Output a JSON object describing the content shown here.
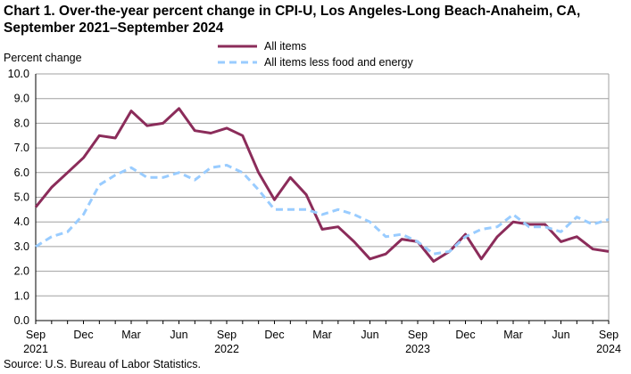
{
  "chart_data": {
    "type": "line",
    "title_line1": "Chart 1. Over-the-year percent change in CPI-U, Los Angeles-Long  Beach-Anaheim,  CA,",
    "title_line2": "September 2021–September 2024",
    "ylabel": "Percent change",
    "source": "Source: U.S. Bureau  of Labor Statistics.",
    "ylim": [
      0,
      10
    ],
    "yticks": [
      "0.0",
      "1.0",
      "2.0",
      "3.0",
      "4.0",
      "5.0",
      "6.0",
      "7.0",
      "8.0",
      "9.0",
      "10.0"
    ],
    "xticks": [
      {
        "i": 0,
        "m": "Sep",
        "y": "2021"
      },
      {
        "i": 3,
        "m": "Dec",
        "y": ""
      },
      {
        "i": 6,
        "m": "Mar",
        "y": ""
      },
      {
        "i": 9,
        "m": "Jun",
        "y": ""
      },
      {
        "i": 12,
        "m": "Sep",
        "y": "2022"
      },
      {
        "i": 15,
        "m": "Dec",
        "y": ""
      },
      {
        "i": 18,
        "m": "Mar",
        "y": ""
      },
      {
        "i": 21,
        "m": "Jun",
        "y": ""
      },
      {
        "i": 24,
        "m": "Sep",
        "y": "2023"
      },
      {
        "i": 27,
        "m": "Dec",
        "y": ""
      },
      {
        "i": 30,
        "m": "Mar",
        "y": ""
      },
      {
        "i": 33,
        "m": "Jun",
        "y": ""
      },
      {
        "i": 36,
        "m": "Sep",
        "y": "2024"
      }
    ],
    "series": [
      {
        "name": "All items",
        "color": "#8B2C5A",
        "dashed": false,
        "values": [
          4.6,
          5.4,
          6.0,
          6.6,
          7.5,
          7.4,
          8.5,
          7.9,
          8.0,
          8.6,
          7.7,
          7.6,
          7.8,
          7.5,
          6.0,
          4.9,
          5.8,
          5.1,
          3.7,
          3.8,
          3.2,
          2.5,
          2.7,
          3.3,
          3.2,
          2.4,
          2.8,
          3.5,
          2.5,
          3.4,
          4.0,
          3.9,
          3.9,
          3.2,
          3.4,
          2.9,
          2.8
        ]
      },
      {
        "name": "All items less food and energy",
        "color": "#99CCFF",
        "dashed": true,
        "values": [
          3.0,
          3.4,
          3.6,
          4.3,
          5.5,
          5.9,
          6.2,
          5.8,
          5.8,
          6.0,
          5.7,
          6.2,
          6.3,
          6.0,
          5.3,
          4.5,
          4.5,
          4.5,
          4.3,
          4.5,
          4.3,
          4.0,
          3.4,
          3.5,
          3.2,
          2.7,
          2.8,
          3.4,
          3.7,
          3.8,
          4.3,
          3.8,
          3.8,
          3.6,
          4.2,
          3.9,
          4.1
        ]
      }
    ]
  }
}
